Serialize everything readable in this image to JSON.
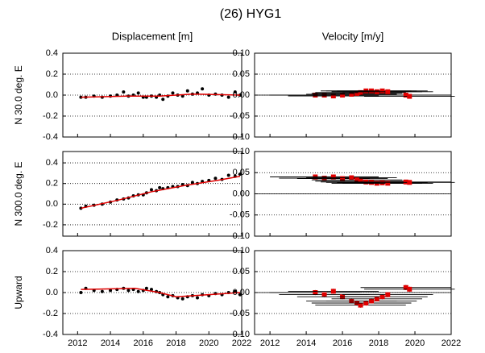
{
  "title": "(26) HYG1",
  "chart_data": [
    {
      "type": "scatter",
      "title": "Displacement [m]",
      "ylabel": "N 30.0 deg. E",
      "xlim": [
        2011.1,
        2022
      ],
      "xticks": [
        2012,
        2014,
        2016,
        2018,
        2020,
        2022
      ],
      "ylim": [
        -0.4,
        0.4
      ],
      "yticks": [
        -0.4,
        -0.2,
        {
          "value": 0,
          "label": "0.0"
        },
        0.2,
        0.4
      ],
      "grid": true,
      "series": [
        {
          "color": "#000000",
          "x": [
            2012.2,
            2012.5,
            2013.0,
            2013.5,
            2014.0,
            2014.4,
            2014.8,
            2015.1,
            2015.4,
            2015.7,
            2016.0,
            2016.2,
            2016.5,
            2016.8,
            2017.0,
            2017.2,
            2017.5,
            2017.8,
            2018.1,
            2018.4,
            2018.7,
            2019.0,
            2019.3,
            2019.6,
            2020.0,
            2020.4,
            2020.8,
            2021.2,
            2021.6,
            2021.9
          ],
          "values": [
            -0.02,
            -0.02,
            -0.01,
            -0.02,
            -0.01,
            0.0,
            0.03,
            -0.01,
            0.0,
            0.02,
            -0.02,
            -0.02,
            -0.01,
            -0.02,
            0.0,
            -0.04,
            -0.01,
            0.02,
            0.0,
            -0.01,
            0.04,
            0.01,
            0.02,
            0.06,
            0.0,
            0.01,
            0.0,
            -0.02,
            0.03,
            0.0
          ]
        },
        {
          "type": "line",
          "color": "#e00000",
          "x": [
            2012.2,
            2015.0,
            2017.0,
            2019.0,
            2021.9
          ],
          "values": [
            -0.02,
            -0.01,
            -0.01,
            0.01,
            0.0
          ]
        }
      ]
    },
    {
      "type": "scatter",
      "title": "Velocity [m/y]",
      "xlim": [
        2011.15,
        2022
      ],
      "xticks": [
        2012,
        2014,
        2016,
        2018,
        2020,
        2022
      ],
      "ylim": [
        -0.1,
        0.1
      ],
      "yticks": [
        {
          "value": -0.1,
          "label": "-0.10"
        },
        -0.05,
        {
          "value": 0,
          "label": "0.00"
        },
        0.05,
        {
          "value": 0.1,
          "label": "0.10"
        }
      ],
      "grid": true,
      "series": [
        {
          "color": "#e00000",
          "x": [
            2014.5,
            2015.0,
            2015.5,
            2016.0,
            2016.5,
            2016.8,
            2017.0,
            2017.3,
            2017.6,
            2017.9,
            2018.2,
            2018.5,
            2019.5,
            2019.7
          ],
          "values": [
            0.0,
            0.0,
            -0.002,
            0.0,
            0.002,
            0.004,
            0.006,
            0.01,
            0.01,
            0.008,
            0.01,
            0.008,
            0.0,
            -0.003
          ],
          "xerr": [
            2.5,
            2.5,
            2.5,
            2.5,
            2.5,
            2.5,
            2.5,
            2.5,
            2.5,
            2.5,
            2.5,
            2.5,
            2.5,
            2.5
          ],
          "yerr": [
            0.003,
            0.003,
            0.003,
            0.003,
            0.003,
            0.003,
            0.003,
            0.003,
            0.003,
            0.003,
            0.003,
            0.003,
            0.003,
            0.003
          ]
        }
      ]
    },
    {
      "type": "scatter",
      "ylabel": "N 300.0 deg. E",
      "xlim": [
        2011.1,
        2022
      ],
      "xticks": [
        2012,
        2014,
        2016,
        2018,
        2020,
        2022
      ],
      "ylim": [
        -0.31,
        0.51
      ],
      "yticks": [
        -0.2,
        {
          "value": 0,
          "label": "0.0"
        },
        0.2,
        0.4
      ],
      "grid": true,
      "series": [
        {
          "color": "#000000",
          "x": [
            2012.2,
            2012.5,
            2013.0,
            2013.5,
            2014.0,
            2014.4,
            2014.8,
            2015.1,
            2015.4,
            2015.7,
            2016.0,
            2016.2,
            2016.5,
            2016.8,
            2017.0,
            2017.2,
            2017.5,
            2017.8,
            2018.1,
            2018.4,
            2018.7,
            2019.0,
            2019.3,
            2019.6,
            2020.0,
            2020.4,
            2020.8,
            2021.2,
            2021.6,
            2021.9
          ],
          "values": [
            -0.04,
            -0.02,
            -0.01,
            0.0,
            0.02,
            0.04,
            0.05,
            0.06,
            0.08,
            0.09,
            0.09,
            0.11,
            0.14,
            0.13,
            0.16,
            0.15,
            0.16,
            0.17,
            0.17,
            0.19,
            0.18,
            0.21,
            0.2,
            0.22,
            0.23,
            0.25,
            0.24,
            0.28,
            0.27,
            0.29
          ]
        },
        {
          "type": "line",
          "color": "#e00000",
          "x": [
            2012.2,
            2014.5,
            2016.5,
            2018.5,
            2020.5,
            2021.9
          ],
          "values": [
            -0.04,
            0.04,
            0.12,
            0.18,
            0.23,
            0.27
          ]
        }
      ]
    },
    {
      "type": "scatter",
      "xlim": [
        2011.15,
        2022
      ],
      "xticks": [
        2012,
        2014,
        2016,
        2018,
        2020,
        2022
      ],
      "ylim": [
        -0.1,
        0.1
      ],
      "yticks": [
        {
          "value": -0.1,
          "label": "-0.10"
        },
        -0.05,
        {
          "value": 0,
          "label": "0.00"
        },
        0.05,
        {
          "value": 0.1,
          "label": "0.10"
        }
      ],
      "grid": true,
      "series": [
        {
          "color": "#e00000",
          "x": [
            2014.5,
            2015.0,
            2015.5,
            2016.0,
            2016.5,
            2016.8,
            2017.0,
            2017.3,
            2017.6,
            2017.9,
            2018.2,
            2018.5,
            2019.5,
            2019.7
          ],
          "values": [
            0.04,
            0.037,
            0.04,
            0.036,
            0.038,
            0.033,
            0.03,
            0.028,
            0.027,
            0.025,
            0.026,
            0.025,
            0.028,
            0.027
          ],
          "xerr": [
            2.5,
            2.5,
            2.5,
            2.5,
            2.5,
            2.5,
            2.5,
            2.5,
            2.5,
            2.5,
            2.5,
            2.5,
            2.5,
            2.5
          ],
          "yerr": [
            0.004,
            0.004,
            0.004,
            0.004,
            0.004,
            0.004,
            0.004,
            0.004,
            0.004,
            0.004,
            0.004,
            0.004,
            0.004,
            0.004
          ]
        }
      ]
    },
    {
      "type": "scatter",
      "ylabel": "Upward",
      "xlim": [
        2011.1,
        2022
      ],
      "xticks": [
        2012,
        2014,
        2016,
        2018,
        2020,
        2022
      ],
      "ylim": [
        -0.4,
        0.4
      ],
      "yticks": [
        -0.4,
        -0.2,
        {
          "value": 0,
          "label": "0.0"
        },
        0.2,
        0.4
      ],
      "grid": true,
      "series": [
        {
          "color": "#000000",
          "x": [
            2012.2,
            2012.5,
            2013.0,
            2013.5,
            2014.0,
            2014.4,
            2014.8,
            2015.1,
            2015.4,
            2015.7,
            2016.0,
            2016.2,
            2016.5,
            2016.8,
            2017.0,
            2017.2,
            2017.5,
            2017.8,
            2018.1,
            2018.4,
            2018.7,
            2019.0,
            2019.3,
            2019.6,
            2020.0,
            2020.4,
            2020.8,
            2021.2,
            2021.6,
            2021.9
          ],
          "values": [
            0.0,
            0.04,
            0.02,
            0.01,
            0.02,
            0.03,
            0.04,
            0.02,
            0.03,
            0.01,
            0.02,
            0.04,
            0.03,
            0.01,
            0.0,
            -0.02,
            -0.04,
            -0.03,
            -0.05,
            -0.06,
            -0.04,
            -0.03,
            -0.05,
            -0.02,
            -0.03,
            -0.01,
            -0.02,
            0.0,
            0.01,
            -0.02
          ]
        },
        {
          "type": "line",
          "color": "#e00000",
          "x": [
            2012.2,
            2015.5,
            2017.0,
            2018.0,
            2020.0,
            2021.9
          ],
          "values": [
            0.03,
            0.04,
            0.0,
            -0.04,
            -0.02,
            0.0
          ]
        }
      ]
    },
    {
      "type": "scatter",
      "xlim": [
        2011.15,
        2022
      ],
      "xticks": [
        2012,
        2014,
        2016,
        2018,
        2020,
        2022
      ],
      "ylim": [
        -0.1,
        0.1
      ],
      "yticks": [
        {
          "value": -0.1,
          "label": "-0.10"
        },
        -0.05,
        {
          "value": 0,
          "label": "0.00"
        },
        0.05,
        {
          "value": 0.1,
          "label": "0.10"
        }
      ],
      "grid": true,
      "series": [
        {
          "color": "#e00000",
          "x": [
            2014.5,
            2015.0,
            2015.5,
            2016.0,
            2016.5,
            2016.8,
            2017.0,
            2017.3,
            2017.6,
            2017.9,
            2018.2,
            2018.5,
            2019.5,
            2019.7
          ],
          "values": [
            0.0,
            -0.005,
            0.003,
            -0.01,
            -0.02,
            -0.025,
            -0.03,
            -0.025,
            -0.02,
            -0.015,
            -0.01,
            -0.005,
            0.012,
            0.008
          ],
          "xerr": [
            2.5,
            2.5,
            2.5,
            2.5,
            2.5,
            2.5,
            2.5,
            2.5,
            2.5,
            2.5,
            2.5,
            2.5,
            2.5,
            2.5
          ],
          "yerr": [
            0.006,
            0.006,
            0.006,
            0.006,
            0.006,
            0.006,
            0.006,
            0.006,
            0.006,
            0.006,
            0.006,
            0.006,
            0.006,
            0.006
          ]
        }
      ]
    }
  ]
}
